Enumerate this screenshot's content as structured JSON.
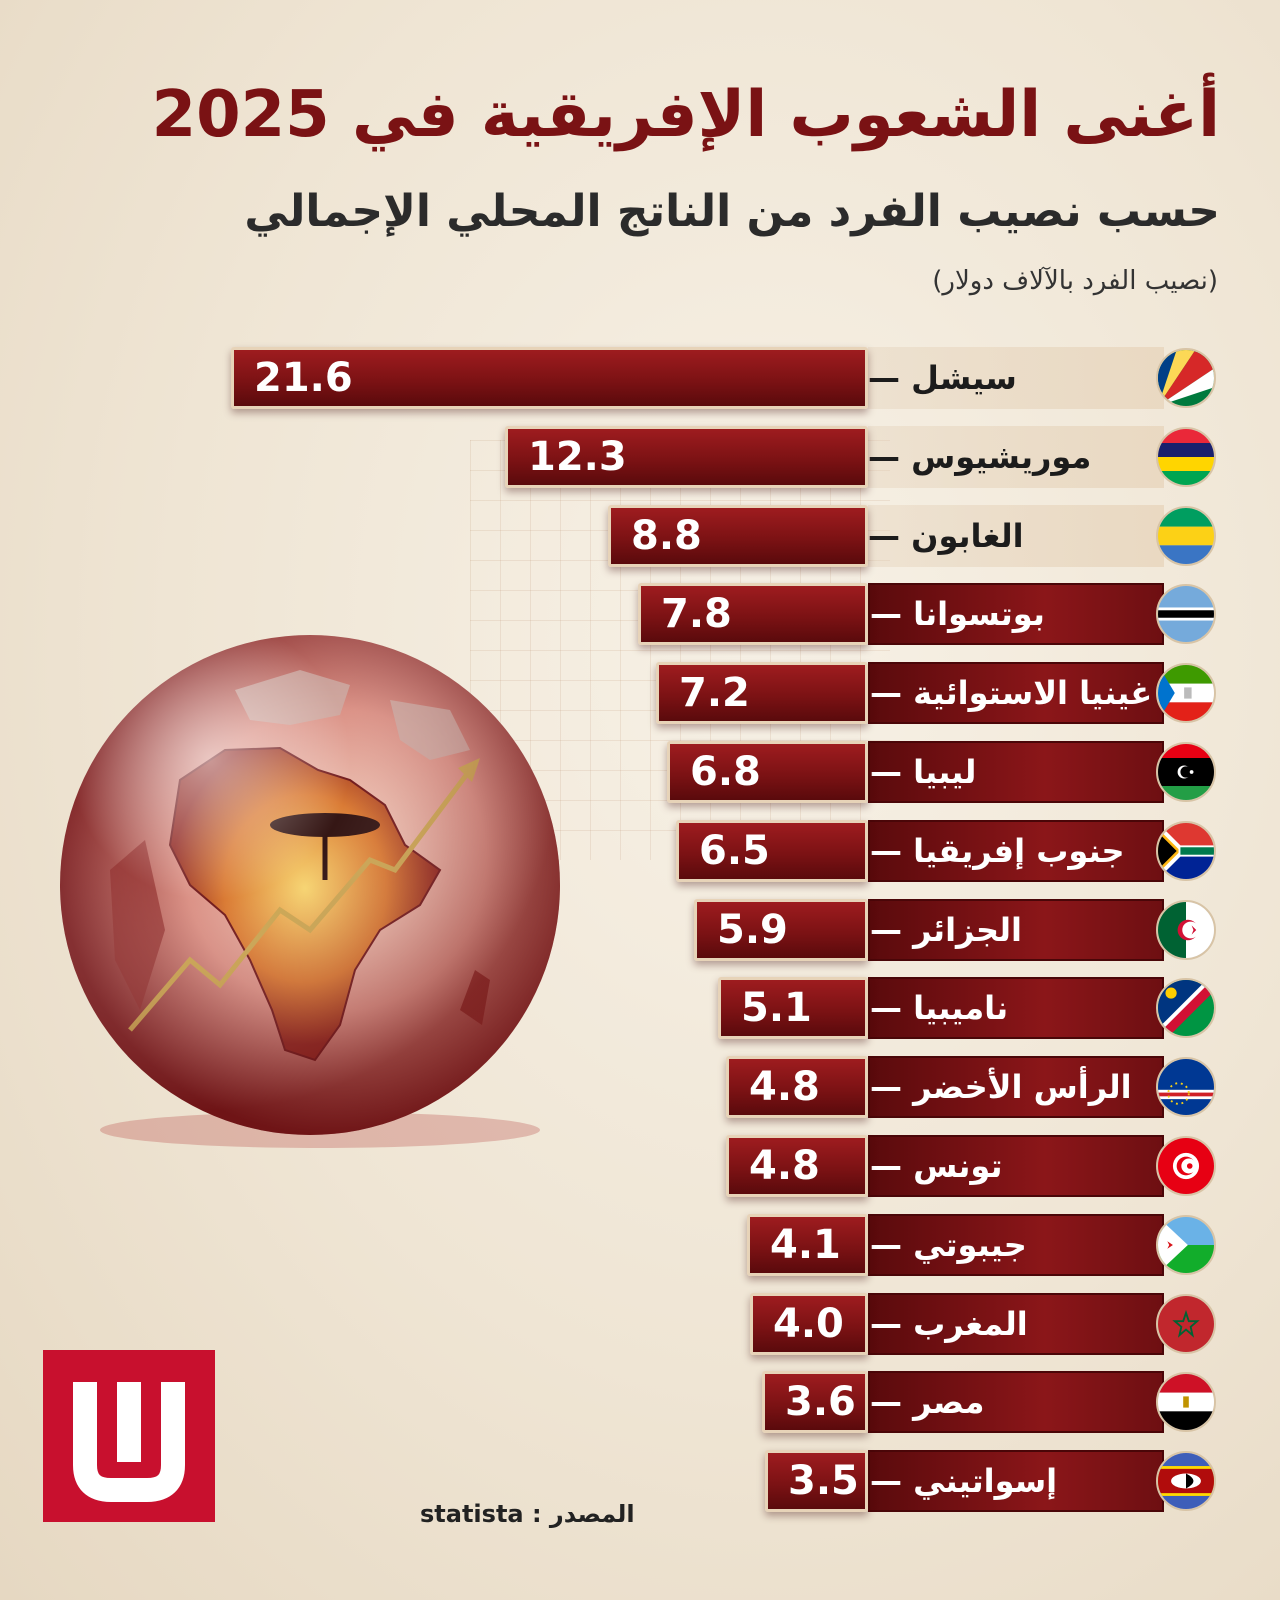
{
  "title": "أغنى الشعوب الإفريقية في 2025",
  "subtitle": "حسب نصيب الفرد من الناتج المحلي الإجمالي",
  "unit_note": "(نصيب الفرد بالآلاف دولار)",
  "source": "المصدر : statista",
  "colors": {
    "bar": "#7c1214",
    "title": "#7a1214",
    "logo": "#c8102e"
  },
  "chart_data": {
    "type": "bar",
    "orientation": "horizontal",
    "title": "أغنى الشعوب الإفريقية في 2025",
    "subtitle": "حسب نصيب الفرد من الناتج المحلي الإجمالي",
    "unit": "(نصيب الفرد بالآلاف دولار)",
    "categories": [
      "سيشل —",
      "موريشيوس —",
      "الغابون —",
      "بوتسوانا —",
      "غينيا الاستوائية —",
      "ليبيا —",
      "جنوب إفريقيا —",
      "الجزائر —",
      "ناميبيا —",
      "الرأس الأخضر —",
      "تونس —",
      "جيبوتي —",
      "المغرب —",
      "مصر —",
      "إسواتيني —"
    ],
    "values": [
      21.6,
      12.3,
      8.8,
      7.8,
      7.2,
      6.8,
      6.5,
      5.9,
      5.1,
      4.8,
      4.8,
      4.1,
      4.0,
      3.6,
      3.5
    ],
    "value_labels": [
      "21.6",
      "12.3",
      "8.8",
      "7.8",
      "7.2",
      "6.8",
      "6.5",
      "5.9",
      "5.1",
      "4.8",
      "4.8",
      "4.1",
      "4.0",
      "3.6",
      "3.5"
    ],
    "flags": [
      "seychelles-flag-icon",
      "mauritius-flag-icon",
      "gabon-flag-icon",
      "botswana-flag-icon",
      "equatorial-guinea-flag-icon",
      "libya-flag-icon",
      "south-africa-flag-icon",
      "algeria-flag-icon",
      "namibia-flag-icon",
      "cape-verde-flag-icon",
      "tunisia-flag-icon",
      "djibouti-flag-icon",
      "morocco-flag-icon",
      "egypt-flag-icon",
      "eswatini-flag-icon"
    ]
  }
}
